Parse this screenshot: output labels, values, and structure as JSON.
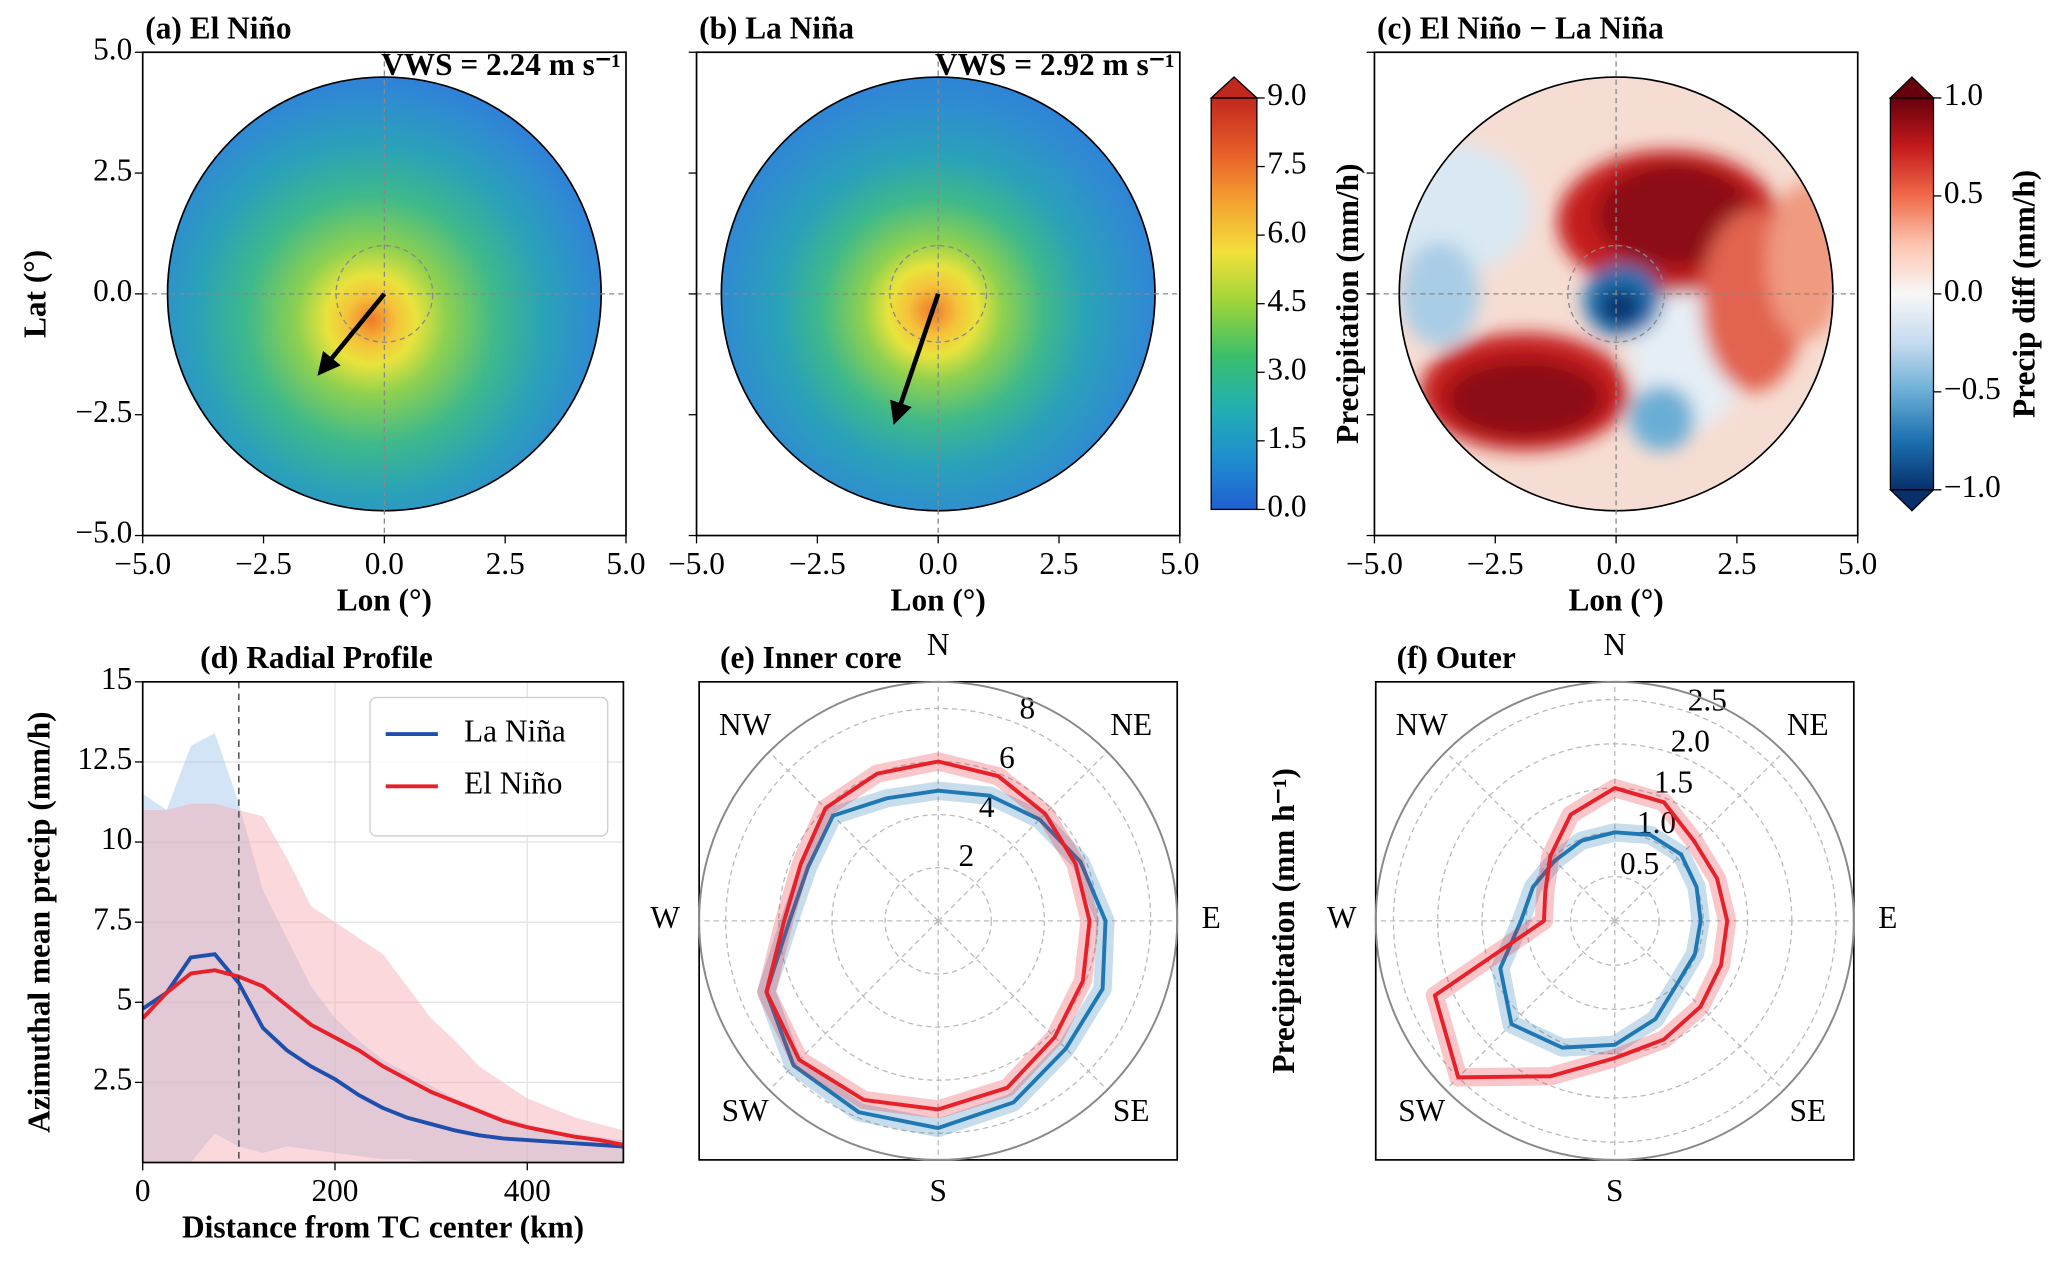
{
  "chart_data": [
    {
      "type": "map",
      "title": "(a) El Niño",
      "annotation": "VWS = 2.24 m s⁻¹",
      "xlabel": "Lon (°)",
      "ylabel": "Lat (°)",
      "xlim": [
        -5,
        5
      ],
      "ylim": [
        -5,
        5
      ],
      "xticks": [
        {
          "value": -5,
          "label": "−5.0"
        },
        {
          "value": -2.5,
          "label": "−2.5"
        },
        {
          "value": 0,
          "label": "0.0"
        },
        {
          "value": 2.5,
          "label": "2.5"
        },
        {
          "value": 5,
          "label": "5.0"
        }
      ],
      "yticks": [
        {
          "value": -5,
          "label": "−5.0"
        },
        {
          "value": -2.5,
          "label": "−2.5"
        },
        {
          "value": 0,
          "label": "0.0"
        },
        {
          "value": 2.5,
          "label": "2.5"
        },
        {
          "value": 5,
          "label": "5.0"
        }
      ]
    },
    {
      "type": "map",
      "title": "(b) La Niña",
      "annotation": "VWS = 2.92 m s⁻¹",
      "xlabel": "Lon (°)",
      "xlim": [
        -5,
        5
      ],
      "ylim": [
        -5,
        5
      ],
      "xticks": [
        {
          "value": -5,
          "label": "−5.0"
        },
        {
          "value": -2.5,
          "label": "−2.5"
        },
        {
          "value": 0,
          "label": "0.0"
        },
        {
          "value": 2.5,
          "label": "2.5"
        },
        {
          "value": 5,
          "label": "5.0"
        }
      ],
      "yticks": [
        -5,
        -2.5,
        0,
        2.5,
        5
      ],
      "colorbar": {
        "label": "Precipitation (mm/h)",
        "lim": [
          0,
          9
        ],
        "extend": "max",
        "colormap": [
          "#1f5fd0",
          "#1f8fd0",
          "#22b0b0",
          "#3cbf6a",
          "#9bd43a",
          "#f2e03a",
          "#f5a030",
          "#e65a28",
          "#c0281e"
        ],
        "ticks": [
          {
            "value": 0,
            "label": "0.0"
          },
          1.5,
          {
            "value": 3,
            "label": "3.0"
          },
          4.5,
          {
            "value": 6,
            "label": "6.0"
          },
          7.5,
          {
            "value": 9,
            "label": "9.0"
          }
        ]
      }
    },
    {
      "type": "map",
      "title": "(c) El Niño − La Niña",
      "xlabel": "Lon (°)",
      "xlim": [
        -5,
        5
      ],
      "ylim": [
        -5,
        5
      ],
      "xticks": [
        {
          "value": -5,
          "label": "−5.0"
        },
        {
          "value": -2.5,
          "label": "−2.5"
        },
        {
          "value": 0,
          "label": "0.0"
        },
        {
          "value": 2.5,
          "label": "2.5"
        },
        {
          "value": 5,
          "label": "5.0"
        }
      ],
      "yticks": [
        -5,
        -2.5,
        0,
        2.5,
        5
      ],
      "colorbar": {
        "label": "Precip diff (mm/h)",
        "lim": [
          -1,
          1
        ],
        "extend": "both",
        "colormap": [
          "#08306b",
          "#1c6fb0",
          "#6aaed6",
          "#c6dbef",
          "#f7f7f7",
          "#fcc5b0",
          "#f06a4a",
          "#c41a1c",
          "#67000d"
        ],
        "ticks": [
          {
            "value": -1,
            "label": "−1.0"
          },
          {
            "value": -0.5,
            "label": "−0.5"
          },
          {
            "value": 0,
            "label": "0.0"
          },
          0.5,
          {
            "value": 1,
            "label": "1.0"
          }
        ]
      }
    },
    {
      "type": "line",
      "title": "(d) Radial Profile",
      "xlabel": "Distance from TC center (km)",
      "ylabel": "Azimuthal mean precip (mm/h)",
      "xlim": [
        0,
        500
      ],
      "ylim": [
        0,
        15
      ],
      "xticks": [
        0,
        200,
        400
      ],
      "yticks": [
        2.5,
        5,
        7.5,
        10,
        12.5,
        15
      ],
      "grid": true,
      "legend": "upper right",
      "vline": 100,
      "x": [
        0,
        25,
        50,
        75,
        100,
        125,
        150,
        175,
        200,
        225,
        250,
        275,
        300,
        325,
        350,
        375,
        400,
        425,
        450,
        475,
        500
      ],
      "series": [
        {
          "name": "La Niña",
          "color": "#1f4fad",
          "band_color": "#9ec3ea",
          "values": [
            4.8,
            5.3,
            6.4,
            6.5,
            5.6,
            4.2,
            3.5,
            3.0,
            2.6,
            2.1,
            1.7,
            1.4,
            1.2,
            1.0,
            0.85,
            0.75,
            0.7,
            0.65,
            0.6,
            0.55,
            0.5
          ],
          "upper": [
            11.5,
            11.0,
            13.0,
            13.4,
            11.2,
            8.5,
            7.0,
            5.5,
            4.5,
            3.8,
            3.2,
            2.8,
            2.4,
            2.0,
            1.7,
            1.4,
            1.2,
            1.0,
            0.9,
            0.8,
            0.7
          ],
          "lower": [
            0,
            0,
            0,
            0.9,
            0.5,
            0.3,
            0.5,
            0.4,
            0.3,
            0.2,
            0.1,
            0.1,
            0,
            0,
            0,
            0,
            0,
            0,
            0,
            0,
            0
          ]
        },
        {
          "name": "El Niño",
          "color": "#e8202a",
          "band_color": "#f7a9b0",
          "values": [
            4.5,
            5.3,
            5.9,
            6.0,
            5.8,
            5.5,
            4.9,
            4.3,
            3.9,
            3.5,
            3.0,
            2.6,
            2.2,
            1.9,
            1.6,
            1.3,
            1.1,
            0.95,
            0.8,
            0.7,
            0.55
          ],
          "upper": [
            11.0,
            11.0,
            11.2,
            11.2,
            11.0,
            10.8,
            9.5,
            8.0,
            7.5,
            7.0,
            6.5,
            5.5,
            4.5,
            3.8,
            3.0,
            2.5,
            2.0,
            1.7,
            1.4,
            1.2,
            1.0
          ],
          "lower": [
            0,
            0,
            0,
            0,
            0,
            0,
            0,
            0,
            0,
            0,
            0,
            0,
            0,
            0,
            0,
            0,
            0,
            0,
            0,
            0,
            0
          ]
        }
      ]
    },
    {
      "type": "polar",
      "title": "(e) Inner core",
      "directions": [
        "N",
        "NE",
        "E",
        "SE",
        "S",
        "SW",
        "W",
        "NW"
      ],
      "rlim": [
        0,
        9
      ],
      "rticks": [
        2,
        4,
        6,
        8
      ],
      "theta": [
        0,
        22.5,
        45,
        67.5,
        90,
        112.5,
        135,
        157.5,
        180,
        202.5,
        225,
        247.5,
        270,
        292.5,
        315,
        337.5
      ],
      "series": [
        {
          "color": "#1f77b4",
          "values": [
            4.9,
            5.1,
            5.4,
            5.8,
            6.3,
            6.7,
            6.8,
            7.4,
            7.8,
            7.8,
            7.7,
            7.0,
            5.6,
            5.3,
            5.6,
            5.0
          ]
        },
        {
          "color": "#e8202a",
          "values": [
            6.0,
            5.9,
            5.7,
            5.6,
            5.7,
            5.9,
            6.2,
            6.8,
            7.1,
            7.3,
            7.4,
            7.0,
            5.8,
            5.6,
            6.0,
            6.0
          ]
        }
      ]
    },
    {
      "type": "polar",
      "title": "(f) Outer",
      "ylabel": "Precipitation (mm h⁻¹)",
      "directions": [
        "N",
        "NE",
        "E",
        "SE",
        "S",
        "SW",
        "W",
        "NW"
      ],
      "rlim": [
        0,
        2.7
      ],
      "rticks": [
        0.5,
        {
          "value": 1,
          "label": "1.0"
        },
        1.5,
        {
          "value": 2,
          "label": "2.0"
        },
        2.5
      ],
      "theta": [
        0,
        22.5,
        45,
        67.5,
        90,
        112.5,
        135,
        157.5,
        180,
        202.5,
        225,
        247.5,
        270,
        292.5,
        315,
        337.5
      ],
      "series": [
        {
          "color": "#1f77b4",
          "values": [
            1.0,
            1.05,
            1.06,
            1.0,
            0.97,
            0.98,
            1.0,
            1.2,
            1.4,
            1.55,
            1.65,
            1.4,
            1.06,
            1.0,
            0.96,
            0.98
          ]
        },
        {
          "color": "#e8202a",
          "values": [
            1.5,
            1.45,
            1.27,
            1.25,
            1.27,
            1.3,
            1.37,
            1.45,
            1.55,
            1.9,
            2.5,
            2.2,
            0.8,
            0.85,
            1.03,
            1.3
          ]
        }
      ]
    }
  ]
}
